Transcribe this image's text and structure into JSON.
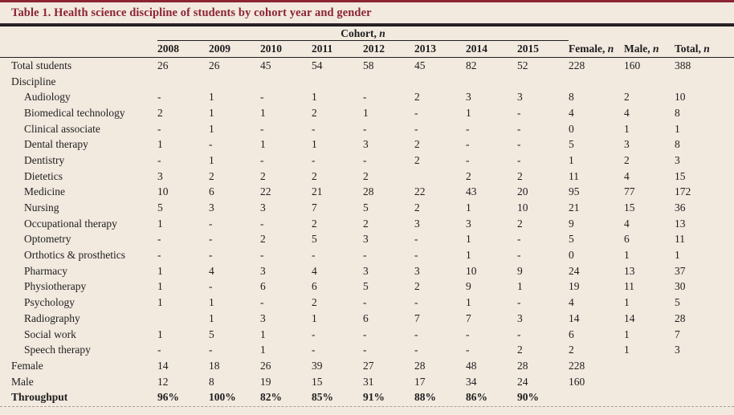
{
  "title": "Table 1. Health science discipline of students by cohort year and gender",
  "colors": {
    "accent_maroon": "#8B2433",
    "background_beige": "#F2E9DF",
    "text": "#1E1E1E"
  },
  "table": {
    "cohort_group_header": "Cohort, n",
    "year_headers": [
      "2008",
      "2009",
      "2010",
      "2011",
      "2012",
      "2013",
      "2014",
      "2015"
    ],
    "summary_headers": [
      "Female, n",
      "Male, n",
      "Total, n"
    ],
    "rows": [
      {
        "label": "Total students",
        "indent": 0,
        "bold": false,
        "values": [
          "26",
          "26",
          "45",
          "54",
          "58",
          "45",
          "82",
          "52",
          "228",
          "160",
          "388"
        ]
      },
      {
        "label": "Discipline",
        "indent": 0,
        "bold": false,
        "values": [
          "",
          "",
          "",
          "",
          "",
          "",
          "",
          "",
          "",
          "",
          ""
        ]
      },
      {
        "label": "Audiology",
        "indent": 1,
        "bold": false,
        "values": [
          "-",
          "1",
          "-",
          "1",
          "-",
          "2",
          "3",
          "3",
          "8",
          "2",
          "10"
        ]
      },
      {
        "label": "Biomedical technology",
        "indent": 1,
        "bold": false,
        "values": [
          "2",
          "1",
          "1",
          "2",
          "1",
          "-",
          "1",
          "-",
          "4",
          "4",
          "8"
        ]
      },
      {
        "label": "Clinical associate",
        "indent": 1,
        "bold": false,
        "values": [
          "-",
          "1",
          "-",
          "-",
          "-",
          "-",
          "-",
          "-",
          "0",
          "1",
          "1"
        ]
      },
      {
        "label": "Dental therapy",
        "indent": 1,
        "bold": false,
        "values": [
          "1",
          "-",
          "1",
          "1",
          "3",
          "2",
          "-",
          "-",
          "5",
          "3",
          "8"
        ]
      },
      {
        "label": "Dentistry",
        "indent": 1,
        "bold": false,
        "values": [
          "-",
          "1",
          "-",
          "-",
          "-",
          "2",
          "-",
          "-",
          "1",
          "2",
          "3"
        ]
      },
      {
        "label": "Dietetics",
        "indent": 1,
        "bold": false,
        "values": [
          "3",
          "2",
          "2",
          "2",
          "2",
          "",
          "2",
          "2",
          "11",
          "4",
          "15"
        ]
      },
      {
        "label": "Medicine",
        "indent": 1,
        "bold": false,
        "values": [
          "10",
          "6",
          "22",
          "21",
          "28",
          "22",
          "43",
          "20",
          "95",
          "77",
          "172"
        ]
      },
      {
        "label": "Nursing",
        "indent": 1,
        "bold": false,
        "values": [
          "5",
          "3",
          "3",
          "7",
          "5",
          "2",
          "1",
          "10",
          "21",
          "15",
          "36"
        ]
      },
      {
        "label": "Occupational therapy",
        "indent": 1,
        "bold": false,
        "values": [
          "1",
          "-",
          "-",
          "2",
          "2",
          "3",
          "3",
          "2",
          "9",
          "4",
          "13"
        ]
      },
      {
        "label": "Optometry",
        "indent": 1,
        "bold": false,
        "values": [
          "-",
          "-",
          "2",
          "5",
          "3",
          "-",
          "1",
          "-",
          "5",
          "6",
          "11"
        ]
      },
      {
        "label": "Orthotics & prosthetics",
        "indent": 1,
        "bold": false,
        "values": [
          "-",
          "-",
          "-",
          "-",
          "-",
          "-",
          "1",
          "-",
          "0",
          "1",
          "1"
        ]
      },
      {
        "label": "Pharmacy",
        "indent": 1,
        "bold": false,
        "values": [
          "1",
          "4",
          "3",
          "4",
          "3",
          "3",
          "10",
          "9",
          "24",
          "13",
          "37"
        ]
      },
      {
        "label": "Physiotherapy",
        "indent": 1,
        "bold": false,
        "values": [
          "1",
          "-",
          "6",
          "6",
          "5",
          "2",
          "9",
          "1",
          "19",
          "11",
          "30"
        ]
      },
      {
        "label": "Psychology",
        "indent": 1,
        "bold": false,
        "values": [
          "1",
          "1",
          "-",
          "2",
          "-",
          "-",
          "1",
          "-",
          "4",
          "1",
          "5"
        ]
      },
      {
        "label": "Radiography",
        "indent": 1,
        "bold": false,
        "values": [
          "",
          "1",
          "3",
          "1",
          "6",
          "7",
          "7",
          "3",
          "14",
          "14",
          "28"
        ]
      },
      {
        "label": "Social work",
        "indent": 1,
        "bold": false,
        "values": [
          "1",
          "5",
          "1",
          "-",
          "-",
          "-",
          "-",
          "-",
          "6",
          "1",
          "7"
        ]
      },
      {
        "label": "Speech therapy",
        "indent": 1,
        "bold": false,
        "values": [
          "-",
          "-",
          "1",
          "-",
          "-",
          "-",
          "-",
          "2",
          "2",
          "1",
          "3"
        ]
      },
      {
        "label": "Female",
        "indent": 0,
        "bold": false,
        "values": [
          "14",
          "18",
          "26",
          "39",
          "27",
          "28",
          "48",
          "28",
          "228",
          "",
          ""
        ]
      },
      {
        "label": "Male",
        "indent": 0,
        "bold": false,
        "values": [
          "12",
          "8",
          "19",
          "15",
          "31",
          "17",
          "34",
          "24",
          "160",
          "",
          ""
        ]
      },
      {
        "label": "Throughput",
        "indent": 0,
        "bold": true,
        "values": [
          "96%",
          "100%",
          "82%",
          "85%",
          "91%",
          "88%",
          "86%",
          "90%",
          "",
          "",
          ""
        ]
      }
    ]
  }
}
